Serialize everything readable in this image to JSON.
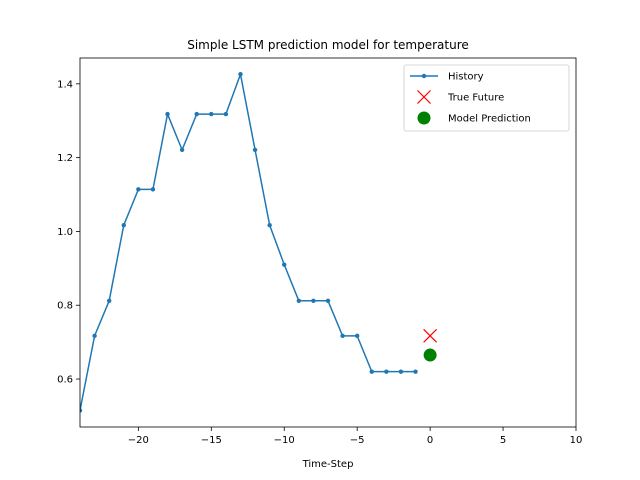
{
  "chart_data": {
    "type": "line",
    "title": "Simple LSTM prediction model for temperature",
    "xlabel": "Time-Step",
    "ylabel": "",
    "xlim": [
      -24,
      10
    ],
    "ylim": [
      0.47,
      1.47
    ],
    "xticks": [
      -20,
      -15,
      -10,
      -5,
      0,
      5,
      10
    ],
    "yticks": [
      0.6,
      0.8,
      1.0,
      1.2,
      1.4
    ],
    "xtick_labels": [
      "−20",
      "−15",
      "−10",
      "−5",
      "0",
      "5",
      "10"
    ],
    "ytick_labels": [
      "0.6",
      "0.8",
      "1.0",
      "1.2",
      "1.4"
    ],
    "grid": false,
    "legend_position": "top-right",
    "series": [
      {
        "name": "History",
        "kind": "line-marker",
        "color": "#1f77b4",
        "x": [
          -24,
          -23,
          -22,
          -21,
          -20,
          -19,
          -18,
          -17,
          -16,
          -15,
          -14,
          -13,
          -12,
          -11,
          -10,
          -9,
          -8,
          -7,
          -6,
          -5,
          -4,
          -3,
          -2,
          -1
        ],
        "y": [
          0.515,
          0.717,
          0.812,
          1.017,
          1.114,
          1.114,
          1.318,
          1.221,
          1.318,
          1.318,
          1.318,
          1.426,
          1.221,
          1.017,
          0.91,
          0.812,
          0.812,
          0.812,
          0.717,
          0.717,
          0.62,
          0.62,
          0.62,
          0.62
        ]
      },
      {
        "name": "True Future",
        "kind": "x-marker",
        "color": "#ff0000",
        "x": [
          0
        ],
        "y": [
          0.717
        ]
      },
      {
        "name": "Model Prediction",
        "kind": "circle-marker",
        "color": "#008000",
        "x": [
          0
        ],
        "y": [
          0.665
        ]
      }
    ]
  }
}
